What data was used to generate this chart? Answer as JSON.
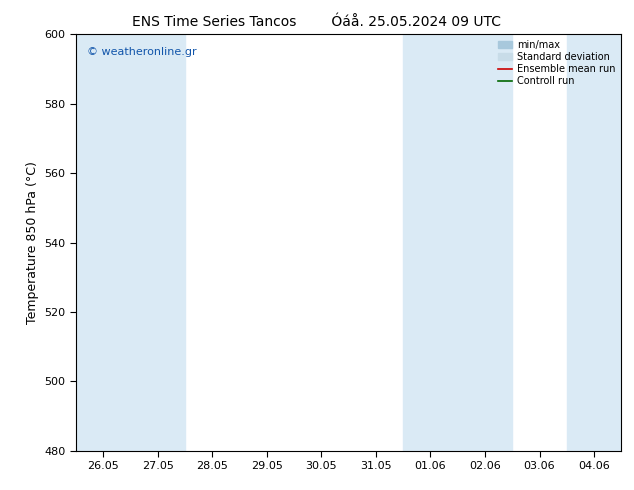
{
  "title_left": "ENS Time Series Tancos",
  "title_right": "Óáå. 25.05.2024 09 UTC",
  "ylabel": "Temperature 850 hPa (°C)",
  "ylim": [
    480,
    600
  ],
  "yticks": [
    480,
    500,
    520,
    540,
    560,
    580,
    600
  ],
  "x_start": "2024-05-26",
  "x_end": "2024-06-04",
  "x_labels": [
    "26.05",
    "27.05",
    "28.05",
    "29.05",
    "30.05",
    "31.05",
    "01.06",
    "02.06",
    "03.06",
    "04.06"
  ],
  "watermark": "© weatheronline.gr",
  "shaded_bands": [
    [
      "2024-05-25 18:00",
      "2024-05-26 18:00"
    ],
    [
      "2024-05-26 18:00",
      "2024-05-27 18:00"
    ],
    [
      "2024-06-01 00:00",
      "2024-06-03 00:00"
    ],
    [
      "2024-06-03 12:00",
      "2024-06-05 00:00"
    ]
  ],
  "band_color": "#daeaf5",
  "background_color": "#ffffff",
  "legend_items": [
    {
      "label": "min/max",
      "color": "#a8c8dc",
      "lw": 1.2
    },
    {
      "label": "Standard deviation",
      "color": "#c8dce8",
      "lw": 4
    },
    {
      "label": "Ensemble mean run",
      "color": "#cc0000",
      "lw": 1.2
    },
    {
      "label": "Controll run",
      "color": "#006600",
      "lw": 1.2
    }
  ],
  "watermark_color": "#1155aa",
  "title_fontsize": 10,
  "tick_fontsize": 8,
  "ylabel_fontsize": 9
}
